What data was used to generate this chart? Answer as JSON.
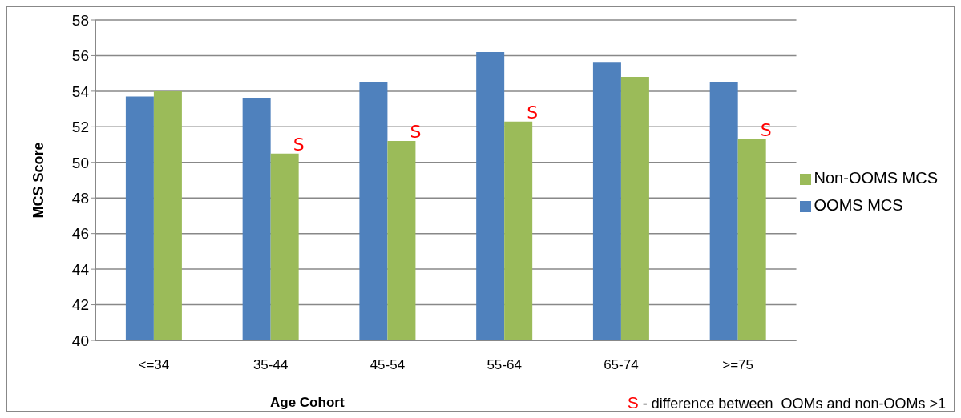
{
  "chart_data": {
    "type": "bar",
    "xlabel": "Age Cohort",
    "ylabel": "MCS  Score",
    "categories": [
      "<=34",
      "35-44",
      "45-54",
      "55-64",
      "65-74",
      ">=75"
    ],
    "series": [
      {
        "name": "OOMS MCS",
        "color": "#4f81bd",
        "values": [
          53.7,
          53.6,
          54.5,
          56.2,
          55.6,
          54.5
        ]
      },
      {
        "name": "Non-OOMS MCS",
        "color": "#9bbb59",
        "values": [
          54.0,
          50.5,
          51.2,
          52.3,
          54.8,
          51.3
        ]
      }
    ],
    "ylim": [
      40,
      58
    ],
    "yticks": [
      40,
      42,
      44,
      46,
      48,
      50,
      52,
      54,
      56,
      58
    ],
    "grid": "y",
    "legend": "right",
    "annotations": [
      {
        "text": "S",
        "x": "35-44",
        "y": 50.5
      },
      {
        "text": "S",
        "x": "45-54",
        "y": 51.2
      },
      {
        "text": "S",
        "x": "55-64",
        "y": 52.3
      },
      {
        "text": "S",
        "x": ">=75",
        "y": 51.3
      },
      "S - difference between  OOMs and non-OOMs >1"
    ]
  }
}
